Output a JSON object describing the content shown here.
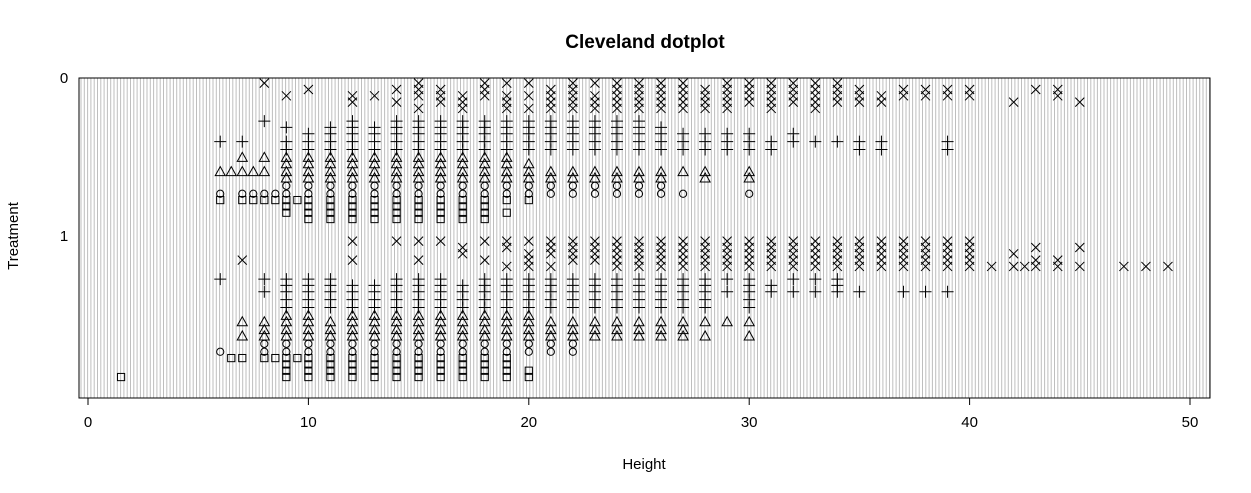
{
  "chart_data": {
    "type": "scatter",
    "title": "Cleveland dotplot",
    "xlabel": "Height",
    "ylabel": "Treatment",
    "xlim": [
      -0.5,
      51
    ],
    "ylim": [
      0,
      2
    ],
    "y_reversed": true,
    "x_ticks": [
      "0",
      "10",
      "20",
      "30",
      "40",
      "50"
    ],
    "y_ticks": [
      "0",
      "1"
    ],
    "grid": true,
    "grid_color": "#bebebe",
    "marker_color": "#000000",
    "series": [
      {
        "symbol": "cross",
        "y": 0.02,
        "x": [
          8,
          15,
          18,
          19,
          20,
          22,
          23,
          24,
          25,
          26,
          27,
          29,
          30,
          31,
          32,
          33,
          34
        ]
      },
      {
        "symbol": "cross",
        "y": 0.06,
        "x": [
          10,
          14,
          15,
          16,
          18,
          21,
          22,
          24,
          25,
          26,
          27,
          28,
          29,
          30,
          31,
          32,
          33,
          34,
          35,
          37,
          38,
          39,
          40,
          43,
          44
        ]
      },
      {
        "symbol": "cross",
        "y": 0.1,
        "x": [
          9,
          12,
          13,
          15,
          16,
          17,
          18,
          19,
          20,
          21,
          22,
          23,
          24,
          25,
          26,
          27,
          28,
          29,
          30,
          31,
          32,
          33,
          34,
          35,
          36,
          37,
          38,
          39,
          40,
          44
        ]
      },
      {
        "symbol": "cross",
        "y": 0.14,
        "x": [
          12,
          14,
          16,
          17,
          19,
          21,
          22,
          23,
          24,
          25,
          26,
          27,
          28,
          29,
          30,
          31,
          32,
          33,
          34,
          35,
          36,
          42,
          45
        ]
      },
      {
        "symbol": "cross",
        "y": 0.18,
        "x": [
          15,
          17,
          19,
          20,
          21,
          22,
          23,
          24,
          25,
          26,
          27,
          28,
          29,
          31,
          33
        ]
      },
      {
        "symbol": "plus",
        "y": 0.26,
        "x": [
          8,
          12,
          14,
          15,
          16,
          17,
          18,
          19,
          20,
          21,
          22,
          23,
          24,
          25
        ]
      },
      {
        "symbol": "plus",
        "y": 0.3,
        "x": [
          9,
          11,
          12,
          13,
          14,
          15,
          16,
          17,
          18,
          19,
          20,
          21,
          22,
          23,
          24,
          25,
          26
        ]
      },
      {
        "symbol": "plus",
        "y": 0.34,
        "x": [
          10,
          11,
          12,
          13,
          14,
          15,
          16,
          17,
          18,
          19,
          20,
          21,
          22,
          23,
          24,
          25,
          26,
          27,
          28,
          29,
          30,
          32
        ]
      },
      {
        "symbol": "plus",
        "y": 0.39,
        "x": [
          6,
          7,
          9,
          10,
          11,
          12,
          13,
          14,
          15,
          16,
          17,
          18,
          19,
          20,
          21,
          22,
          23,
          24,
          25,
          26,
          27,
          28,
          29,
          30,
          31,
          32,
          33,
          34,
          35,
          36,
          39
        ]
      },
      {
        "symbol": "plus",
        "y": 0.44,
        "x": [
          9,
          10,
          11,
          12,
          13,
          14,
          15,
          16,
          17,
          18,
          19,
          20,
          21,
          22,
          23,
          24,
          25,
          26,
          27,
          28,
          29,
          30,
          31,
          35,
          36,
          39
        ]
      },
      {
        "symbol": "triangle",
        "y": 0.49,
        "x": [
          7,
          8,
          9,
          10,
          11,
          12,
          13,
          14,
          15,
          16,
          17,
          18,
          19
        ]
      },
      {
        "symbol": "triangle",
        "y": 0.53,
        "x": [
          9,
          10,
          11,
          12,
          13,
          14,
          15,
          16,
          17,
          18,
          19,
          20
        ]
      },
      {
        "symbol": "triangle",
        "y": 0.58,
        "x": [
          6,
          6.5,
          7,
          7.5,
          8,
          9,
          10,
          11,
          12,
          13,
          14,
          15,
          16,
          17,
          18,
          19,
          20,
          21,
          22,
          23,
          24,
          25,
          26,
          27,
          28,
          30
        ]
      },
      {
        "symbol": "triangle",
        "y": 0.62,
        "x": [
          9,
          10,
          11,
          12,
          13,
          14,
          15,
          16,
          17,
          18,
          19,
          20,
          21,
          22,
          23,
          24,
          25,
          26,
          28,
          30
        ]
      },
      {
        "symbol": "circle",
        "y": 0.67,
        "x": [
          9,
          10,
          11,
          12,
          13,
          14,
          15,
          16,
          17,
          18,
          19,
          20,
          21,
          22,
          23,
          24,
          25,
          26
        ]
      },
      {
        "symbol": "circle",
        "y": 0.72,
        "x": [
          6,
          7,
          7.5,
          8,
          8.5,
          9,
          10,
          11,
          12,
          13,
          14,
          15,
          16,
          17,
          18,
          19,
          20,
          21,
          22,
          23,
          24,
          25,
          26,
          27,
          30
        ]
      },
      {
        "symbol": "square",
        "y": 0.76,
        "x": [
          6,
          7,
          7.5,
          8,
          8.5,
          9,
          9.5,
          10,
          11,
          12,
          13,
          14,
          15,
          16,
          17,
          18,
          19,
          20
        ]
      },
      {
        "symbol": "square",
        "y": 0.8,
        "x": [
          9,
          10,
          11,
          12,
          13,
          14,
          15,
          16,
          17,
          18
        ]
      },
      {
        "symbol": "square",
        "y": 0.84,
        "x": [
          9,
          10,
          11,
          12,
          13,
          14,
          15,
          16,
          17,
          18,
          19
        ]
      },
      {
        "symbol": "square",
        "y": 0.88,
        "x": [
          10,
          11,
          12,
          13,
          14,
          15,
          16,
          17,
          18
        ]
      },
      {
        "symbol": "cross",
        "y": 1.02,
        "x": [
          12,
          14,
          15,
          16,
          18,
          19,
          20,
          21,
          22,
          23,
          24,
          25,
          26,
          27,
          28,
          29,
          30,
          31,
          32,
          33,
          34,
          35,
          36,
          37,
          38,
          39,
          40
        ]
      },
      {
        "symbol": "cross",
        "y": 1.06,
        "x": [
          17,
          19,
          21,
          22,
          23,
          24,
          25,
          26,
          27,
          28,
          29,
          30,
          31,
          32,
          33,
          34,
          35,
          36,
          37,
          38,
          39,
          40,
          43,
          45
        ]
      },
      {
        "symbol": "cross",
        "y": 1.1,
        "x": [
          17,
          20,
          21,
          22,
          23,
          24,
          25,
          26,
          27,
          28,
          29,
          30,
          31,
          32,
          33,
          34,
          35,
          36,
          37,
          38,
          39,
          40,
          42
        ]
      },
      {
        "symbol": "cross",
        "y": 1.14,
        "x": [
          7,
          12,
          15,
          18,
          20,
          22,
          23,
          24,
          25,
          26,
          27,
          28,
          29,
          30,
          31,
          32,
          33,
          34,
          35,
          36,
          37,
          38,
          39,
          40,
          43,
          44
        ]
      },
      {
        "symbol": "cross",
        "y": 1.18,
        "x": [
          19,
          20,
          21,
          24,
          25,
          26,
          27,
          28,
          29,
          30,
          31,
          32,
          33,
          34,
          35,
          36,
          37,
          38,
          39,
          40,
          41,
          42,
          42.5,
          43,
          44,
          45,
          47,
          48,
          49
        ]
      },
      {
        "symbol": "plus",
        "y": 1.26,
        "x": [
          6,
          8,
          9,
          10,
          11,
          14,
          15,
          16,
          18,
          19,
          20,
          21,
          22,
          23,
          24,
          25,
          26,
          27,
          28,
          29,
          30,
          32,
          33,
          34
        ]
      },
      {
        "symbol": "plus",
        "y": 1.3,
        "x": [
          9,
          10,
          11,
          12,
          13,
          14,
          15,
          16,
          17,
          18,
          19,
          20,
          21,
          22,
          23,
          24,
          25,
          26,
          27,
          28,
          30,
          31,
          34
        ]
      },
      {
        "symbol": "plus",
        "y": 1.34,
        "x": [
          8,
          9,
          10,
          11,
          12,
          13,
          14,
          15,
          16,
          17,
          18,
          19,
          20,
          21,
          22,
          23,
          24,
          25,
          26,
          27,
          28,
          29,
          30,
          31,
          32,
          33,
          34,
          35,
          37,
          38,
          39
        ]
      },
      {
        "symbol": "plus",
        "y": 1.39,
        "x": [
          9,
          10,
          11,
          12,
          13,
          14,
          15,
          16,
          17,
          18,
          19,
          20,
          21,
          22,
          23,
          24,
          25,
          26,
          27,
          28,
          30
        ]
      },
      {
        "symbol": "plus",
        "y": 1.44,
        "x": [
          9,
          10,
          11,
          12,
          13,
          14,
          15,
          16,
          17,
          18,
          19,
          20,
          21,
          22,
          23,
          24,
          25,
          26,
          27,
          28,
          30
        ]
      },
      {
        "symbol": "triangle",
        "y": 1.49,
        "x": [
          9,
          10,
          12,
          13,
          14,
          15,
          16,
          17,
          18,
          19,
          20
        ]
      },
      {
        "symbol": "triangle",
        "y": 1.53,
        "x": [
          7,
          8,
          9,
          10,
          11,
          12,
          13,
          14,
          15,
          16,
          17,
          18,
          19,
          20,
          21,
          22,
          23,
          24,
          25,
          26,
          27,
          28,
          29,
          30
        ]
      },
      {
        "symbol": "triangle",
        "y": 1.58,
        "x": [
          8,
          9,
          10,
          11,
          12,
          13,
          14,
          15,
          16,
          17,
          18,
          19,
          20,
          21,
          22,
          23,
          24,
          25,
          26,
          27
        ]
      },
      {
        "symbol": "triangle",
        "y": 1.62,
        "x": [
          7,
          8,
          9,
          10,
          11,
          12,
          13,
          14,
          15,
          16,
          17,
          18,
          19,
          20,
          21,
          22,
          23,
          24,
          25,
          26,
          27,
          28,
          30
        ]
      },
      {
        "symbol": "circle",
        "y": 1.67,
        "x": [
          8,
          9,
          10,
          11,
          12,
          13,
          14,
          15,
          16,
          17,
          18,
          19,
          20,
          21,
          22
        ]
      },
      {
        "symbol": "circle",
        "y": 1.72,
        "x": [
          6,
          8,
          9,
          10,
          11,
          12,
          13,
          14,
          15,
          16,
          17,
          18,
          19,
          20,
          21,
          22
        ]
      },
      {
        "symbol": "square",
        "y": 1.76,
        "x": [
          6.5,
          7,
          8,
          8.5,
          9,
          9.5,
          10,
          11,
          12,
          13,
          14,
          15,
          16,
          17,
          18,
          19
        ]
      },
      {
        "symbol": "square",
        "y": 1.8,
        "x": [
          9,
          10,
          11,
          12,
          13,
          14,
          15,
          16,
          17,
          18,
          19
        ]
      },
      {
        "symbol": "square",
        "y": 1.84,
        "x": [
          9,
          10,
          11,
          12,
          13,
          14,
          15,
          16,
          17,
          18,
          19,
          20
        ]
      },
      {
        "symbol": "square",
        "y": 1.88,
        "x": [
          1.5,
          9,
          10,
          11,
          12,
          13,
          14,
          15,
          16,
          17,
          18,
          19,
          20
        ]
      }
    ]
  }
}
